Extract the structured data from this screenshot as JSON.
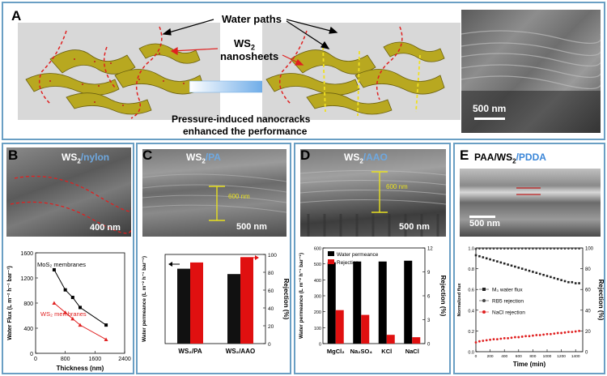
{
  "panelA": {
    "label": "A",
    "water_paths": "Water paths",
    "ws2_line1": "WS",
    "ws2_sub": "2",
    "ws2_line2": "nanosheets",
    "caption_line1": "Pressure-induced nanocracks",
    "caption_line2": "enhanced the performance",
    "scale_bar": "500 nm"
  },
  "panelB": {
    "label": "B",
    "sem_title_main": "WS",
    "sem_title_sub": "2",
    "sem_title_suffix": "/nylon",
    "scale_bar": "400 nm",
    "chart_data": {
      "type": "line",
      "xlabel": "Thickness (nm)",
      "ylabel": "Water Flux (L m⁻² h⁻¹ bar⁻¹)",
      "xlim": [
        0,
        2400
      ],
      "ylim": [
        0,
        1600
      ],
      "xticks": [
        "0",
        "800",
        "1600",
        "2400"
      ],
      "yticks": [
        "0",
        "400",
        "800",
        "1200",
        "1600"
      ],
      "series": [
        {
          "name": "MoS₂ membranes",
          "color": "#000000",
          "x": [
            500,
            800,
            1000,
            1200,
            1900
          ],
          "y": [
            1330,
            1010,
            890,
            730,
            450
          ]
        },
        {
          "name": "WS₂ membranes",
          "color": "#e02020",
          "x": [
            500,
            800,
            1000,
            1200,
            1900
          ],
          "y": [
            800,
            650,
            550,
            450,
            220
          ]
        }
      ]
    }
  },
  "panelC": {
    "label": "C",
    "sem_title_main": "WS",
    "sem_title_sub": "2",
    "sem_title_suffix": "/PA",
    "thickness": "600 nm",
    "scale_bar": "500 nm",
    "chart_data": {
      "type": "bar",
      "categories": [
        "WS₂/PA",
        "WS₂/AAO"
      ],
      "ylabel_left": "Water permeance (L m⁻² h⁻¹ bar⁻¹)",
      "ylabel_right": "Rejection (%)",
      "yticks_right": [
        "0",
        "20",
        "40",
        "60",
        "80",
        "100"
      ],
      "ylim_right": [
        0,
        100
      ],
      "series": [
        {
          "name": "Water permeance",
          "color": "#111111",
          "values": [
            84,
            78
          ]
        },
        {
          "name": "Rejection",
          "color": "#e01010",
          "values": [
            91,
            97
          ]
        }
      ]
    }
  },
  "panelD": {
    "label": "D",
    "sem_title_main": "WS",
    "sem_title_sub": "2",
    "sem_title_suffix": "/AAO",
    "thickness": "600 nm",
    "scale_bar": "500 nm",
    "chart_data": {
      "type": "bar",
      "categories": [
        "MgCl₂",
        "Na₂SO₄",
        "KCl",
        "NaCl"
      ],
      "ylabel_left": "Water permeance (L m⁻² h⁻¹ bar⁻¹)",
      "ylabel_right": "Rejection (%)",
      "yticks_left": [
        "0",
        "100",
        "200",
        "300",
        "400",
        "500",
        "600"
      ],
      "yticks_right": [
        "0",
        "3",
        "6",
        "9",
        "12"
      ],
      "ylim_left": [
        0,
        600
      ],
      "ylim_right": [
        0,
        12
      ],
      "series": [
        {
          "name": "Water permeance",
          "color": "#000000",
          "axis": "left",
          "values": [
            510,
            515,
            515,
            520
          ]
        },
        {
          "name": "Rejection",
          "color": "#e01010",
          "axis": "right",
          "values": [
            4.2,
            3.6,
            1.1,
            0.8
          ]
        }
      ]
    }
  },
  "panelE": {
    "label": "E",
    "sem_title_main": "PAA/WS",
    "sem_title_sub": "2",
    "sem_title_suffix": "/PDDA",
    "scale_bar": "500 nm",
    "chart_data": {
      "type": "scatter",
      "xlabel": "Time (min)",
      "ylabel_left": "Normalized flux",
      "ylabel_right": "Rejection (%)",
      "xlim": [
        0,
        1500
      ],
      "xticks": [
        "0",
        "200",
        "400",
        "600",
        "800",
        "1000",
        "1200",
        "1400"
      ],
      "yticks_left": [
        "0.0",
        "0.2",
        "0.4",
        "0.6",
        "0.8",
        "1.0"
      ],
      "yticks_right": [
        "0",
        "20",
        "40",
        "60",
        "80",
        "100"
      ],
      "series": [
        {
          "name": "M₃ water flux",
          "color": "#222222",
          "marker": "square",
          "x": [
            0,
            50,
            100,
            150,
            200,
            250,
            300,
            350,
            400,
            450,
            500,
            550,
            600,
            650,
            700,
            750,
            800,
            850,
            900,
            950,
            1000,
            1050,
            1100,
            1150,
            1200,
            1250,
            1300,
            1350,
            1400,
            1450
          ],
          "y": [
            0.93,
            0.92,
            0.91,
            0.9,
            0.89,
            0.88,
            0.87,
            0.86,
            0.85,
            0.84,
            0.83,
            0.82,
            0.81,
            0.8,
            0.79,
            0.78,
            0.77,
            0.76,
            0.75,
            0.74,
            0.73,
            0.72,
            0.71,
            0.7,
            0.69,
            0.68,
            0.67,
            0.67,
            0.66,
            0.66
          ]
        },
        {
          "name": "RB5 rejection",
          "color": "#444444",
          "marker": "circle",
          "x": [
            0,
            50,
            100,
            150,
            200,
            250,
            300,
            350,
            400,
            450,
            500,
            550,
            600,
            650,
            700,
            750,
            800,
            850,
            900,
            950,
            1000,
            1050,
            1100,
            1150,
            1200,
            1250,
            1300,
            1350,
            1400,
            1450
          ],
          "y": [
            99,
            99.5,
            99.5,
            99.5,
            99.5,
            99.5,
            99.5,
            99.5,
            99.5,
            99.5,
            99.5,
            99.5,
            99.5,
            99.5,
            99.5,
            99.5,
            99.5,
            99.5,
            99.5,
            99.5,
            99.5,
            99.5,
            99.5,
            99.5,
            99.5,
            99.5,
            99.5,
            99.5,
            99.5,
            99.5
          ]
        },
        {
          "name": "NaCl rejection",
          "color": "#e02020",
          "marker": "circle",
          "x": [
            0,
            50,
            100,
            150,
            200,
            250,
            300,
            350,
            400,
            450,
            500,
            550,
            600,
            650,
            700,
            750,
            800,
            850,
            900,
            950,
            1000,
            1050,
            1100,
            1150,
            1200,
            1250,
            1300,
            1350,
            1400,
            1450
          ],
          "y": [
            9,
            10,
            10.5,
            11,
            11.5,
            12,
            12,
            12.5,
            13,
            13,
            13.5,
            14,
            14,
            14.5,
            15,
            15,
            15.5,
            16,
            16,
            16.5,
            17,
            17,
            17.5,
            18,
            18,
            18.5,
            19,
            19,
            19.5,
            20
          ]
        }
      ]
    }
  }
}
